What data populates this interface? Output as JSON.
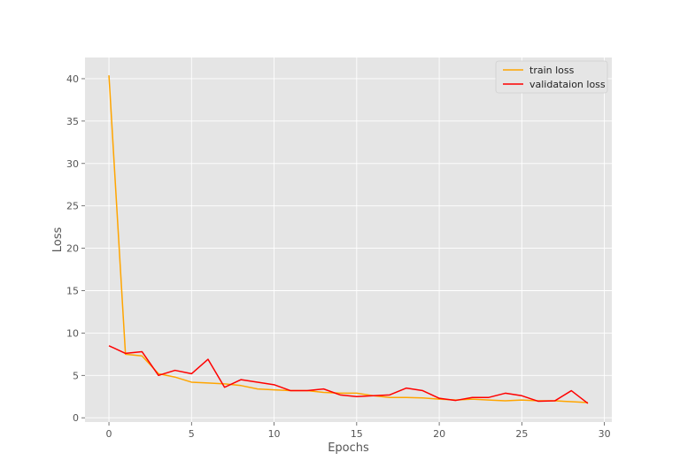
{
  "chart_data": {
    "type": "line",
    "title": "",
    "xlabel": "Epochs",
    "ylabel": "Loss",
    "xlim": [
      -1.45,
      30.45
    ],
    "ylim": [
      -0.5,
      42.5
    ],
    "xticks": [
      0,
      5,
      10,
      15,
      20,
      25,
      30
    ],
    "yticks": [
      0,
      5,
      10,
      15,
      20,
      25,
      30,
      35,
      40
    ],
    "grid": true,
    "legend_position": "top-right",
    "x": [
      0,
      1,
      2,
      3,
      4,
      5,
      6,
      7,
      8,
      9,
      10,
      11,
      12,
      13,
      14,
      15,
      16,
      17,
      18,
      19,
      20,
      21,
      22,
      23,
      24,
      25,
      26,
      27,
      28,
      29
    ],
    "series": [
      {
        "name": "train loss",
        "color": "#FFA500",
        "values": [
          40.4,
          7.5,
          7.3,
          5.2,
          4.8,
          4.2,
          4.1,
          4.0,
          3.8,
          3.4,
          3.3,
          3.2,
          3.2,
          3.0,
          2.9,
          2.9,
          2.6,
          2.4,
          2.4,
          2.35,
          2.2,
          2.1,
          2.2,
          2.1,
          2.0,
          2.1,
          2.0,
          2.0,
          1.9,
          1.8
        ]
      },
      {
        "name": "validataion loss",
        "color": "#FF0000",
        "values": [
          8.5,
          7.6,
          7.8,
          5.0,
          5.6,
          5.2,
          6.9,
          3.6,
          4.5,
          4.2,
          3.9,
          3.2,
          3.2,
          3.4,
          2.7,
          2.5,
          2.6,
          2.7,
          3.5,
          3.2,
          2.3,
          2.05,
          2.4,
          2.4,
          2.9,
          2.6,
          1.95,
          2.0,
          3.2,
          1.7
        ]
      }
    ]
  }
}
